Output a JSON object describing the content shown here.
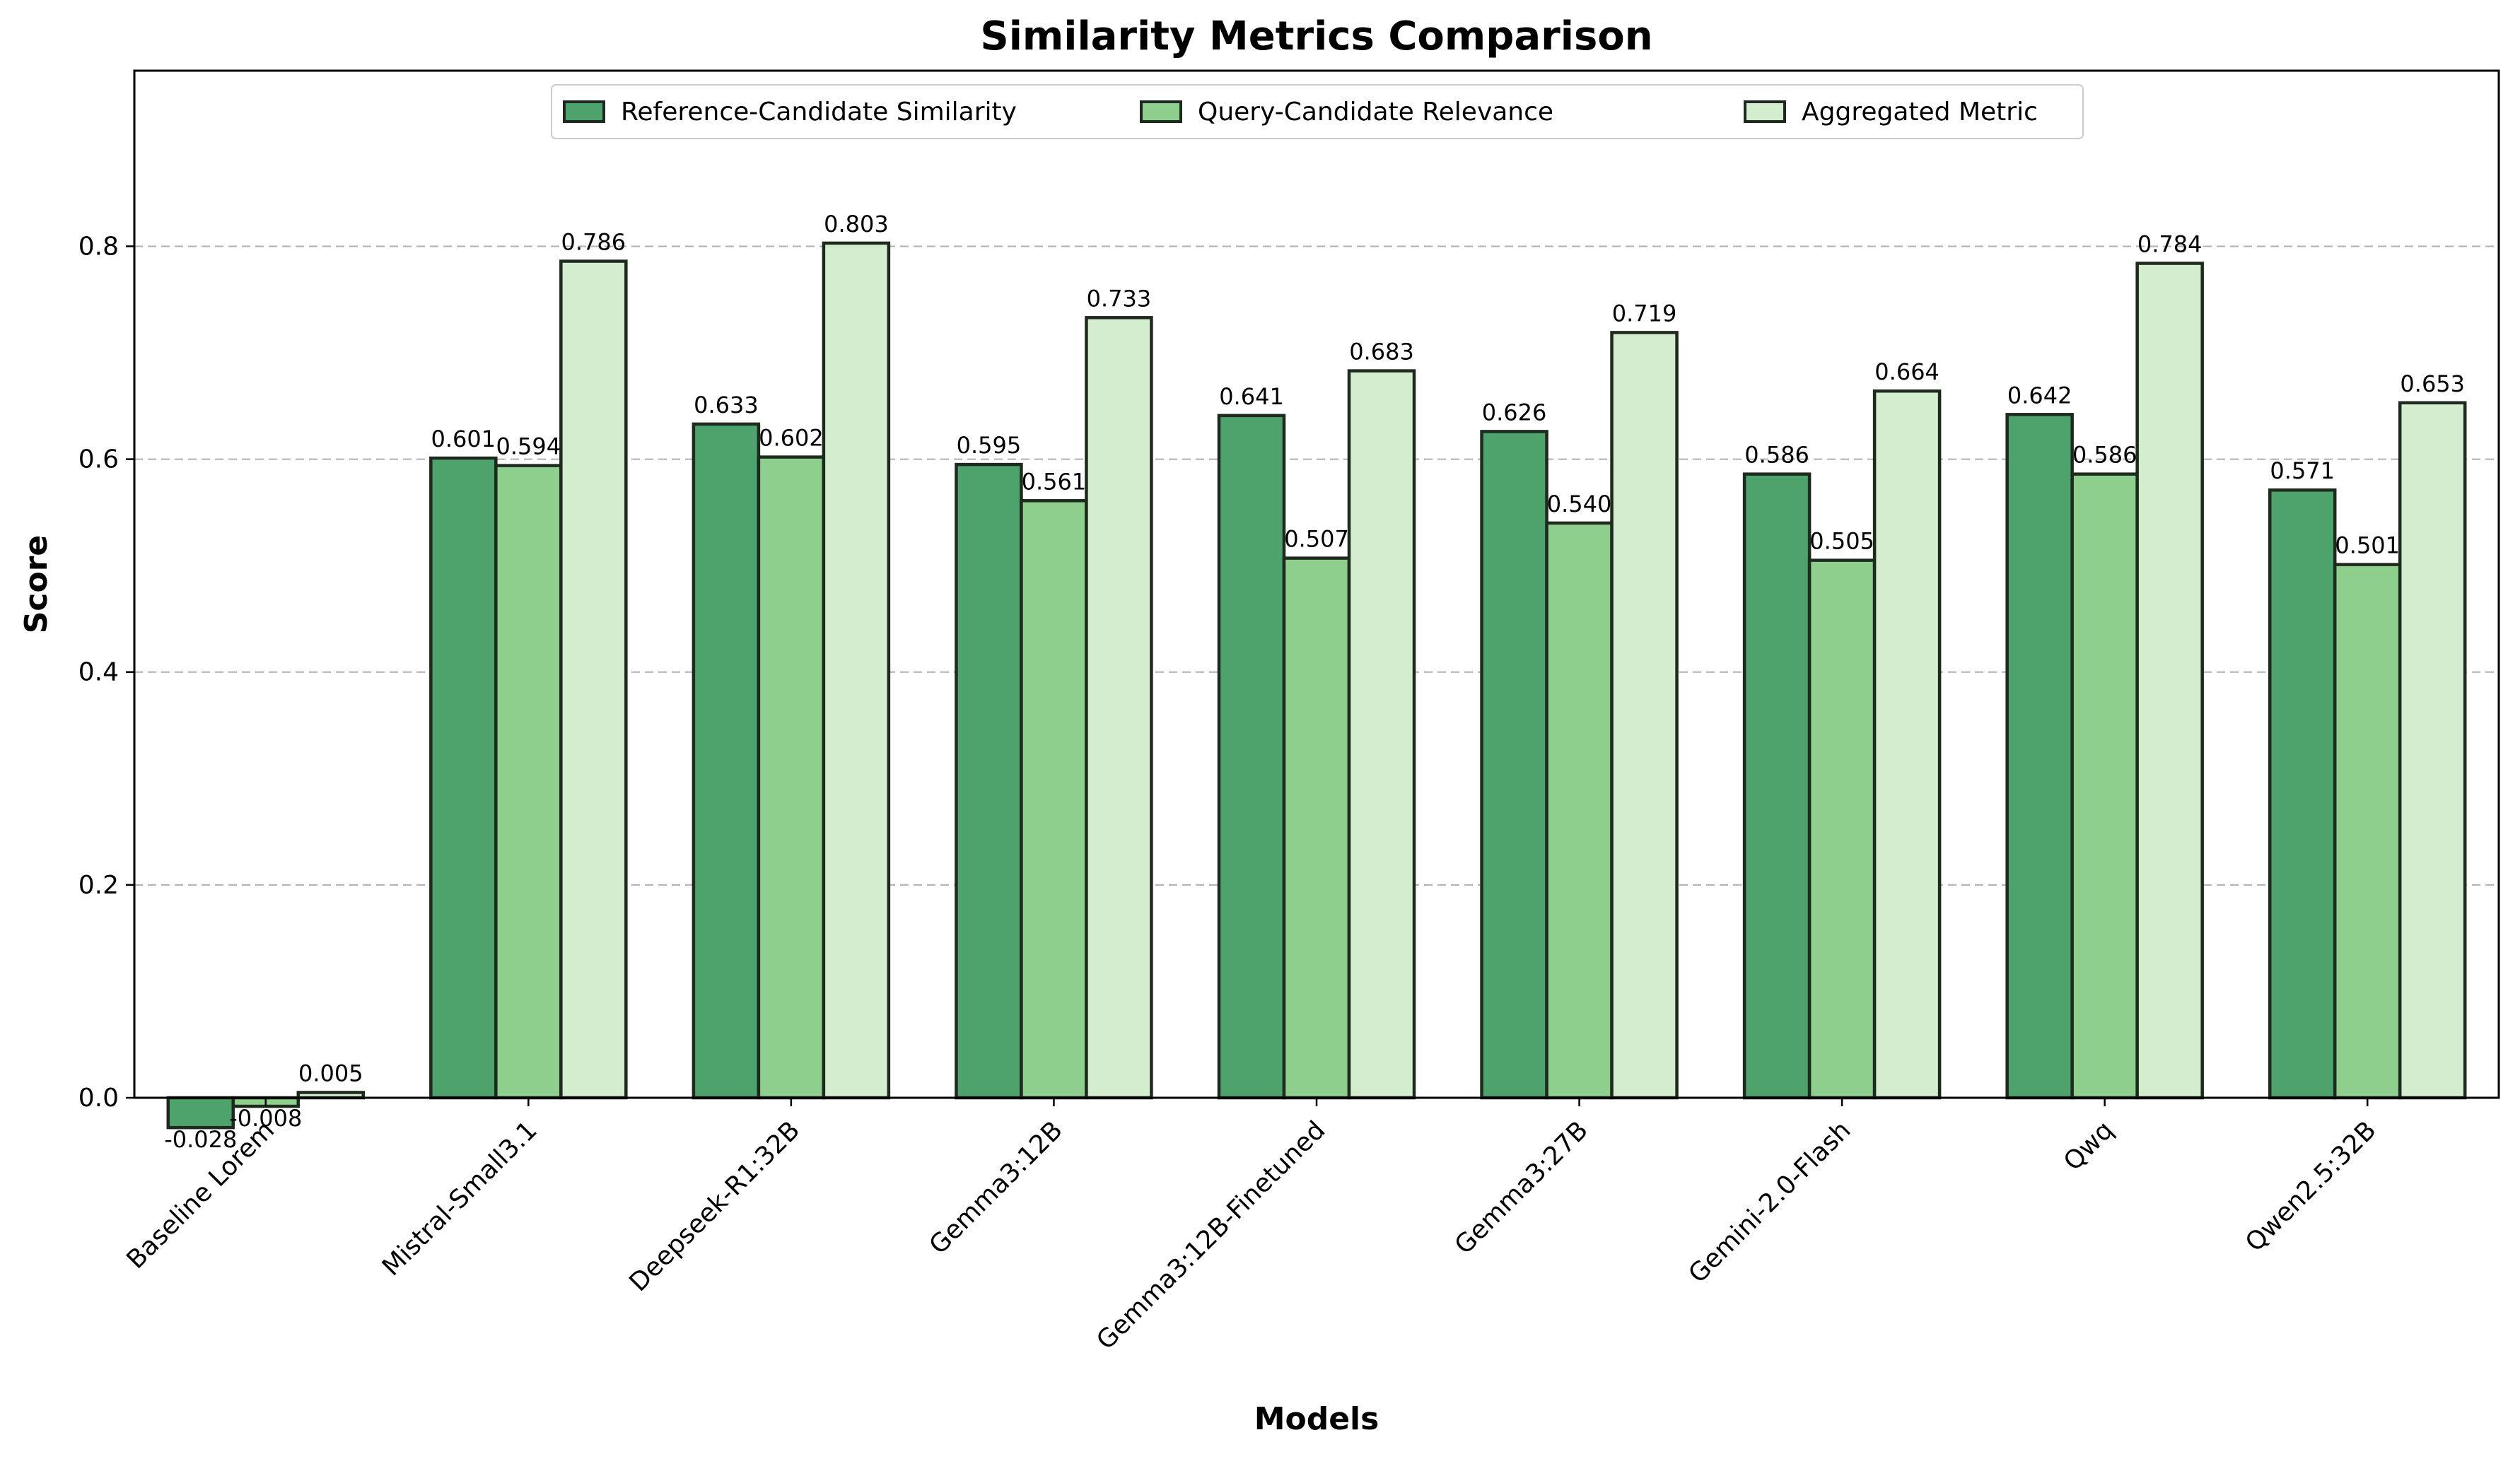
{
  "chart_data": {
    "type": "bar",
    "title": "Similarity Metrics Comparison",
    "xlabel": "Models",
    "ylabel": "Score",
    "ylim": [
      0,
      0.965
    ],
    "yticks": [
      "0.0",
      "0.2",
      "0.4",
      "0.6",
      "0.8"
    ],
    "grid": "y-dashed",
    "legend_position": "top-center",
    "categories": [
      "Baseline Lorem",
      "Mistral-Small3.1",
      "Deepseek-R1:32B",
      "Gemma3:12B",
      "Gemma3:12B-Finetuned",
      "Gemma3:27B",
      "Gemini-2.0-Flash",
      "Qwq",
      "Qwen2.5:32B"
    ],
    "series": [
      {
        "name": "Reference-Candidate Similarity",
        "color": "#4ea36d",
        "values": [
          -0.028,
          0.601,
          0.633,
          0.595,
          0.641,
          0.626,
          0.586,
          0.642,
          0.571
        ],
        "labels": [
          "-0.028",
          "0.601",
          "0.633",
          "0.595",
          "0.641",
          "0.626",
          "0.586",
          "0.642",
          "0.571"
        ]
      },
      {
        "name": "Query-Candidate Relevance",
        "color": "#8fcf8d",
        "values": [
          -0.008,
          0.594,
          0.602,
          0.561,
          0.507,
          0.54,
          0.505,
          0.586,
          0.501
        ],
        "labels": [
          "-0.008",
          "0.594",
          "0.602",
          "0.561",
          "0.507",
          "0.540",
          "0.505",
          "0.586",
          "0.501"
        ]
      },
      {
        "name": "Aggregated Metric",
        "color": "#d5edcf",
        "values": [
          0.005,
          0.786,
          0.803,
          0.733,
          0.683,
          0.719,
          0.664,
          0.784,
          0.653
        ],
        "labels": [
          "0.005",
          "0.786",
          "0.803",
          "0.733",
          "0.683",
          "0.719",
          "0.664",
          "0.784",
          "0.653"
        ]
      }
    ],
    "edge_color": "#1f2a1f"
  }
}
